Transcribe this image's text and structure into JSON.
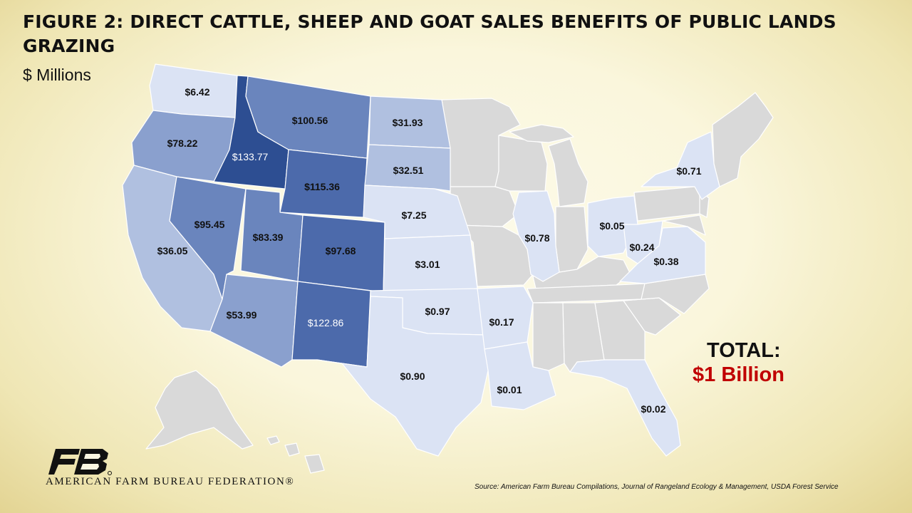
{
  "header": {
    "title": "FIGURE 2: DIRECT CATTLE, SHEEP AND GOAT SALES BENEFITS OF PUBLIC LANDS GRAZING",
    "subtitle": "$ Millions"
  },
  "colors": {
    "tier1": "#dbe3f4",
    "tier2": "#b0c0e0",
    "tier3": "#8aa0ce",
    "tier4": "#6a85bd",
    "tier5": "#4c6aab",
    "tier6": "#2d4e92",
    "no_data": "#d9d9d9",
    "total_value": "#c00000"
  },
  "states": [
    {
      "id": "wa",
      "value": "$6.42"
    },
    {
      "id": "or",
      "value": "$78.22"
    },
    {
      "id": "id",
      "value": "$133.77"
    },
    {
      "id": "mt",
      "value": "$100.56"
    },
    {
      "id": "wy",
      "value": "$115.36"
    },
    {
      "id": "ca",
      "value": "$36.05"
    },
    {
      "id": "nv",
      "value": "$95.45"
    },
    {
      "id": "ut",
      "value": "$83.39"
    },
    {
      "id": "co",
      "value": "$97.68"
    },
    {
      "id": "az",
      "value": "$53.99"
    },
    {
      "id": "nm",
      "value": "$122.86"
    },
    {
      "id": "nd",
      "value": "$31.93"
    },
    {
      "id": "sd",
      "value": "$32.51"
    },
    {
      "id": "ne",
      "value": "$7.25"
    },
    {
      "id": "ks",
      "value": "$3.01"
    },
    {
      "id": "ok",
      "value": "$0.97"
    },
    {
      "id": "tx",
      "value": "$0.90"
    },
    {
      "id": "ar",
      "value": "$0.17"
    },
    {
      "id": "la",
      "value": "$0.01"
    },
    {
      "id": "il",
      "value": "$0.78"
    },
    {
      "id": "oh",
      "value": "$0.05"
    },
    {
      "id": "wv",
      "value": "$0.24"
    },
    {
      "id": "va",
      "value": "$0.38"
    },
    {
      "id": "ny",
      "value": "$0.71"
    },
    {
      "id": "fl",
      "value": "$0.02"
    }
  ],
  "total": {
    "label": "TOTAL:",
    "value": "$1 Billion"
  },
  "organization": "AMERICAN FARM BUREAU FEDERATION®",
  "source": "Source: American Farm Bureau Compilations, Journal of Rangeland Ecology & Management, USDA Forest Service"
}
